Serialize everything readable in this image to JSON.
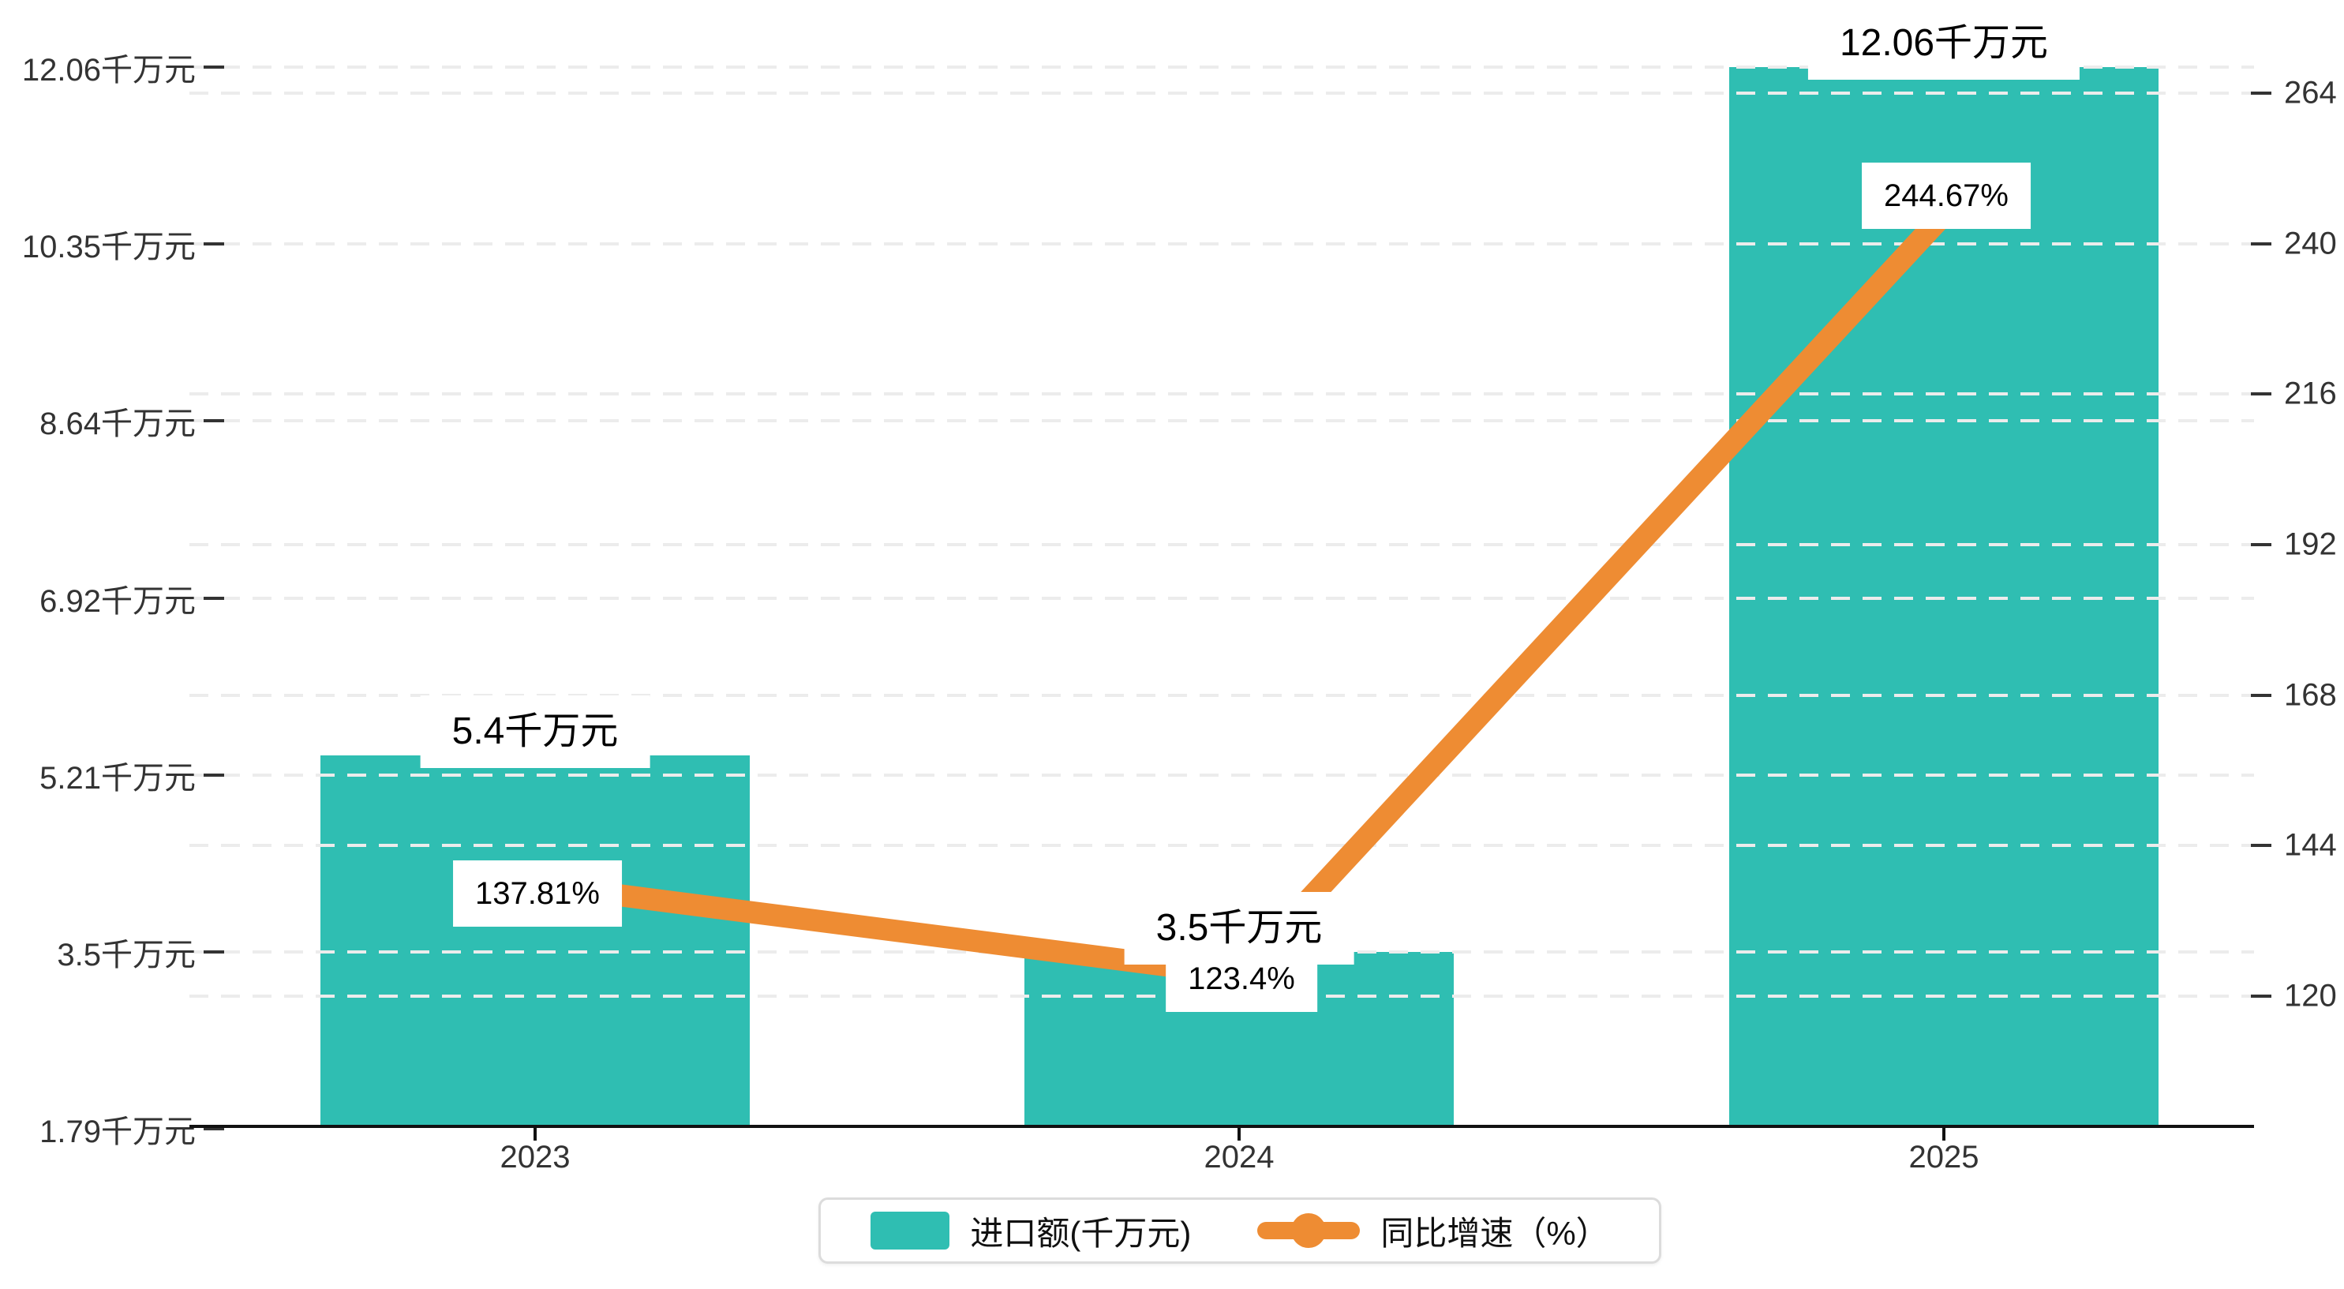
{
  "chart_data": {
    "type": "combo",
    "categories": [
      "2023",
      "2024",
      "2025"
    ],
    "series": [
      {
        "name": "进口额(千万元)",
        "type": "bar",
        "values": [
          5.4,
          3.5,
          12.06
        ],
        "value_labels": [
          "5.4千万元",
          "3.5千万元",
          "12.06千万元"
        ],
        "color": "#2FBEB2",
        "axis": "left"
      },
      {
        "name": "同比增速（%）",
        "type": "line",
        "values": [
          137.81,
          123.4,
          244.67
        ],
        "value_labels": [
          "137.81%",
          "123.4%",
          "244.67%"
        ],
        "color": "#EE8C33",
        "axis": "right"
      }
    ],
    "y_axis_left": {
      "unit": "千万元",
      "min": 1.79,
      "max": 12.06,
      "ticks": [
        12.06,
        10.35,
        8.64,
        6.92,
        5.21,
        3.5,
        1.79
      ],
      "tick_labels": [
        "12.06千万元",
        "10.35千万元",
        "8.64千万元",
        "6.92千万元",
        "5.21千万元",
        "3.5千万元",
        "1.79千万元"
      ]
    },
    "y_axis_right": {
      "unit": "%",
      "min": 120,
      "max": 264,
      "ticks": [
        264,
        240,
        216,
        192,
        168,
        144,
        120
      ],
      "tick_labels": [
        "264",
        "240",
        "216",
        "192",
        "168",
        "144",
        "120"
      ]
    },
    "grid": "dashed",
    "legend_position": "bottom"
  },
  "legend": {
    "items": [
      {
        "label": "进口额(千万元)",
        "marker": "bar-swatch"
      },
      {
        "label": "同比增速（%）",
        "marker": "line-dot-marker"
      }
    ]
  },
  "colors": {
    "bar": "#2FBEB2",
    "line": "#EE8C33",
    "axis_text": "#333333",
    "axis_line": "#111111",
    "gridline": "#ececec",
    "label_text": "#000000",
    "label_bg": "#ffffff",
    "legend_border": "#dcdcdc"
  }
}
